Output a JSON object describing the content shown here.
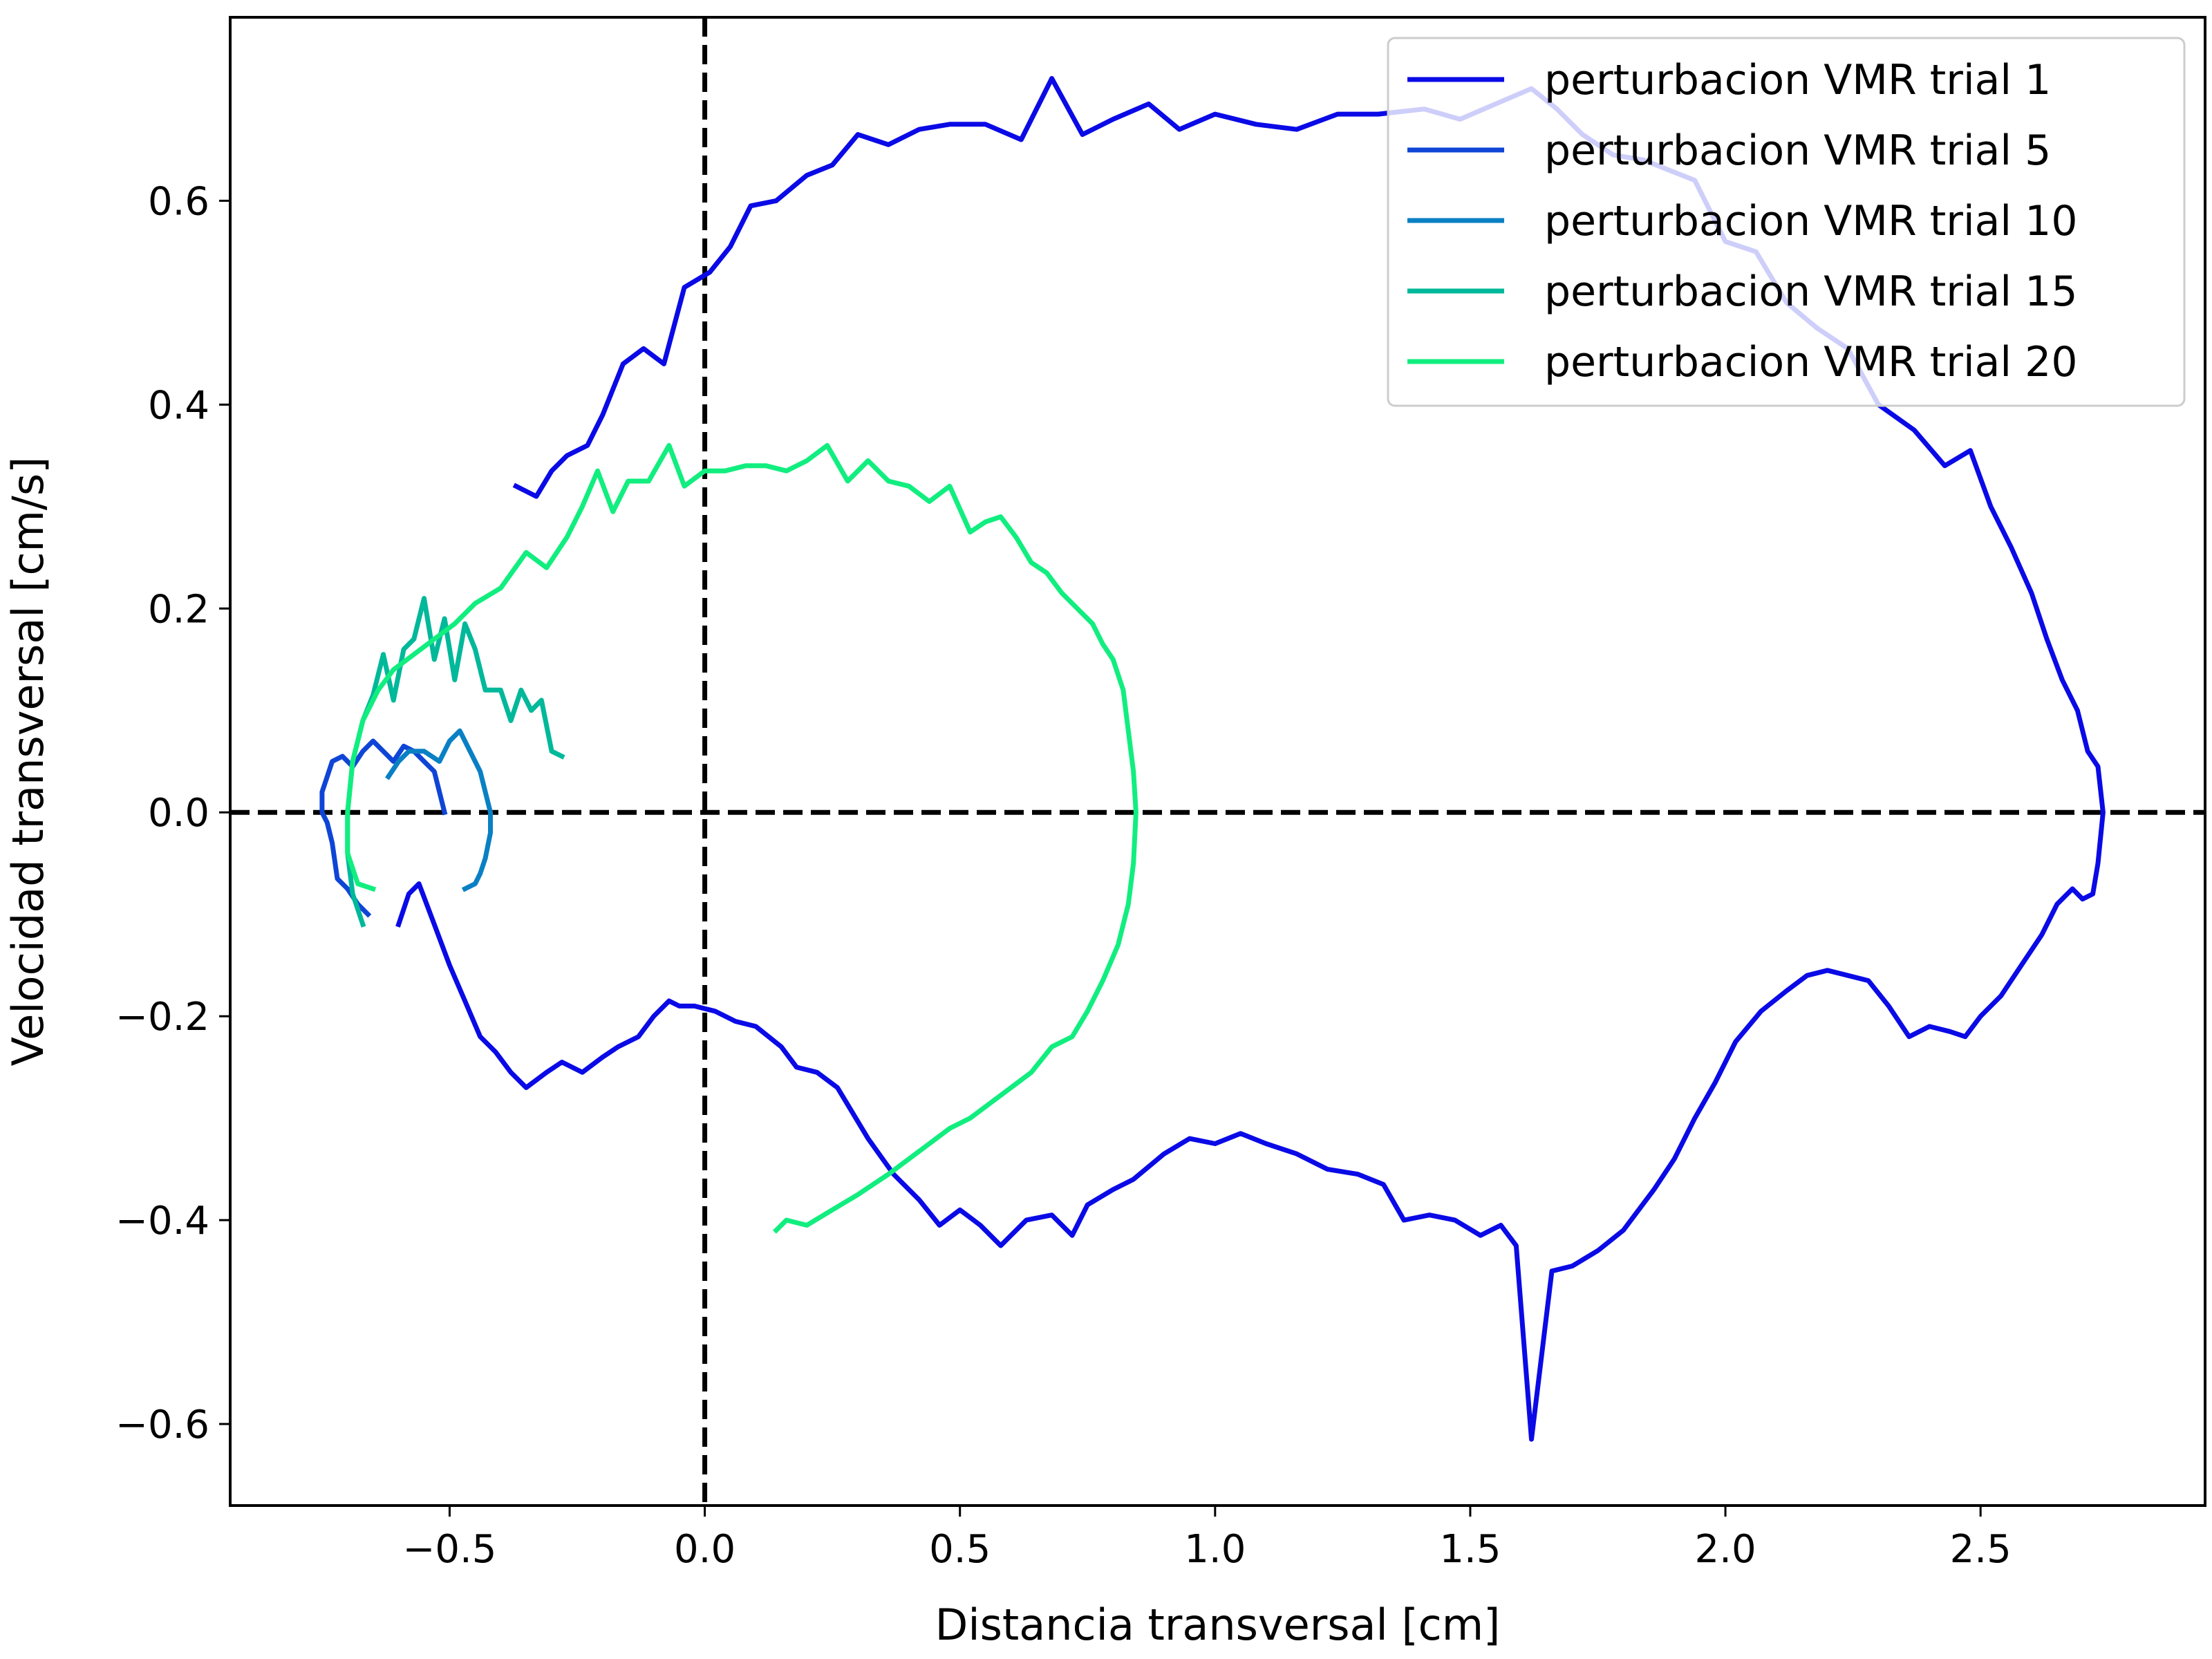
{
  "chart_data": {
    "type": "line",
    "title": "",
    "xlabel": "Distancia transversal [cm]",
    "ylabel": "Velocidad transversal [cm/s]",
    "xlim": [
      -0.93,
      2.94
    ],
    "ylim": [
      -0.68,
      0.78
    ],
    "xticks": [
      -0.5,
      0.0,
      0.5,
      1.0,
      1.5,
      2.0,
      2.5
    ],
    "xtick_labels": [
      "−0.5",
      "0.0",
      "0.5",
      "1.0",
      "1.5",
      "2.0",
      "2.5"
    ],
    "yticks": [
      -0.6,
      -0.4,
      -0.2,
      0.0,
      0.2,
      0.4,
      0.6
    ],
    "ytick_labels": [
      "−0.6",
      "−0.4",
      "−0.2",
      "0.0",
      "0.2",
      "0.4",
      "0.6"
    ],
    "grid": false,
    "legend_position": "top-right",
    "reference_lines": [
      {
        "orientation": "vertical",
        "value": 0.0,
        "style": "dashed",
        "color": "#000000"
      },
      {
        "orientation": "horizontal",
        "value": 0.0,
        "style": "dashed",
        "color": "#000000"
      }
    ],
    "series": [
      {
        "name": "perturbacion VMR trial 1",
        "color": "#0a0ae6",
        "points": [
          [
            -0.37,
            0.32
          ],
          [
            -0.33,
            0.31
          ],
          [
            -0.3,
            0.335
          ],
          [
            -0.27,
            0.35
          ],
          [
            -0.23,
            0.36
          ],
          [
            -0.2,
            0.39
          ],
          [
            -0.16,
            0.44
          ],
          [
            -0.12,
            0.455
          ],
          [
            -0.08,
            0.44
          ],
          [
            -0.04,
            0.515
          ],
          [
            0.01,
            0.53
          ],
          [
            0.05,
            0.555
          ],
          [
            0.09,
            0.595
          ],
          [
            0.14,
            0.6
          ],
          [
            0.2,
            0.625
          ],
          [
            0.25,
            0.635
          ],
          [
            0.3,
            0.665
          ],
          [
            0.36,
            0.655
          ],
          [
            0.42,
            0.67
          ],
          [
            0.48,
            0.675
          ],
          [
            0.55,
            0.675
          ],
          [
            0.62,
            0.66
          ],
          [
            0.68,
            0.72
          ],
          [
            0.74,
            0.665
          ],
          [
            0.8,
            0.68
          ],
          [
            0.87,
            0.695
          ],
          [
            0.93,
            0.67
          ],
          [
            1.0,
            0.685
          ],
          [
            1.08,
            0.675
          ],
          [
            1.16,
            0.67
          ],
          [
            1.24,
            0.685
          ],
          [
            1.32,
            0.685
          ],
          [
            1.41,
            0.69
          ],
          [
            1.48,
            0.68
          ],
          [
            1.55,
            0.695
          ],
          [
            1.62,
            0.71
          ],
          [
            1.67,
            0.69
          ],
          [
            1.72,
            0.665
          ],
          [
            1.78,
            0.645
          ],
          [
            1.84,
            0.64
          ],
          [
            1.89,
            0.63
          ],
          [
            1.94,
            0.62
          ],
          [
            2.0,
            0.56
          ],
          [
            2.06,
            0.55
          ],
          [
            2.12,
            0.5
          ],
          [
            2.18,
            0.475
          ],
          [
            2.24,
            0.455
          ],
          [
            2.3,
            0.4
          ],
          [
            2.37,
            0.375
          ],
          [
            2.43,
            0.34
          ],
          [
            2.48,
            0.355
          ],
          [
            2.52,
            0.3
          ],
          [
            2.56,
            0.26
          ],
          [
            2.6,
            0.215
          ],
          [
            2.63,
            0.17
          ],
          [
            2.66,
            0.13
          ],
          [
            2.69,
            0.1
          ],
          [
            2.71,
            0.06
          ],
          [
            2.73,
            0.045
          ],
          [
            2.74,
            0.0
          ],
          [
            2.73,
            -0.05
          ],
          [
            2.72,
            -0.08
          ],
          [
            2.7,
            -0.085
          ],
          [
            2.68,
            -0.075
          ],
          [
            2.65,
            -0.09
          ],
          [
            2.62,
            -0.12
          ],
          [
            2.58,
            -0.15
          ],
          [
            2.54,
            -0.18
          ],
          [
            2.5,
            -0.2
          ],
          [
            2.47,
            -0.22
          ],
          [
            2.44,
            -0.215
          ],
          [
            2.4,
            -0.21
          ],
          [
            2.36,
            -0.22
          ],
          [
            2.32,
            -0.19
          ],
          [
            2.28,
            -0.165
          ],
          [
            2.24,
            -0.16
          ],
          [
            2.2,
            -0.155
          ],
          [
            2.16,
            -0.16
          ],
          [
            2.12,
            -0.175
          ],
          [
            2.07,
            -0.195
          ],
          [
            2.02,
            -0.225
          ],
          [
            1.98,
            -0.265
          ],
          [
            1.94,
            -0.3
          ],
          [
            1.9,
            -0.34
          ],
          [
            1.86,
            -0.37
          ],
          [
            1.8,
            -0.41
          ],
          [
            1.75,
            -0.43
          ],
          [
            1.7,
            -0.445
          ],
          [
            1.66,
            -0.45
          ],
          [
            1.62,
            -0.615
          ],
          [
            1.59,
            -0.425
          ],
          [
            1.56,
            -0.405
          ],
          [
            1.52,
            -0.415
          ],
          [
            1.47,
            -0.4
          ],
          [
            1.42,
            -0.395
          ],
          [
            1.37,
            -0.4
          ],
          [
            1.33,
            -0.365
          ],
          [
            1.28,
            -0.355
          ],
          [
            1.22,
            -0.35
          ],
          [
            1.16,
            -0.335
          ],
          [
            1.1,
            -0.325
          ],
          [
            1.05,
            -0.315
          ],
          [
            1.0,
            -0.325
          ],
          [
            0.95,
            -0.32
          ],
          [
            0.9,
            -0.335
          ],
          [
            0.84,
            -0.36
          ],
          [
            0.8,
            -0.37
          ],
          [
            0.75,
            -0.385
          ],
          [
            0.72,
            -0.415
          ],
          [
            0.68,
            -0.395
          ],
          [
            0.63,
            -0.4
          ],
          [
            0.58,
            -0.425
          ],
          [
            0.54,
            -0.405
          ],
          [
            0.5,
            -0.39
          ],
          [
            0.46,
            -0.405
          ],
          [
            0.42,
            -0.38
          ],
          [
            0.37,
            -0.355
          ],
          [
            0.32,
            -0.32
          ],
          [
            0.29,
            -0.295
          ],
          [
            0.26,
            -0.27
          ],
          [
            0.22,
            -0.255
          ],
          [
            0.18,
            -0.25
          ],
          [
            0.15,
            -0.23
          ],
          [
            0.1,
            -0.21
          ],
          [
            0.06,
            -0.205
          ],
          [
            0.02,
            -0.195
          ],
          [
            -0.02,
            -0.19
          ],
          [
            -0.05,
            -0.19
          ],
          [
            -0.07,
            -0.185
          ],
          [
            -0.1,
            -0.2
          ],
          [
            -0.13,
            -0.22
          ],
          [
            -0.17,
            -0.23
          ],
          [
            -0.2,
            -0.24
          ],
          [
            -0.24,
            -0.255
          ],
          [
            -0.28,
            -0.245
          ],
          [
            -0.31,
            -0.255
          ],
          [
            -0.35,
            -0.27
          ],
          [
            -0.38,
            -0.255
          ],
          [
            -0.41,
            -0.235
          ],
          [
            -0.44,
            -0.22
          ],
          [
            -0.47,
            -0.185
          ],
          [
            -0.5,
            -0.15
          ],
          [
            -0.53,
            -0.11
          ],
          [
            -0.56,
            -0.07
          ],
          [
            -0.58,
            -0.08
          ],
          [
            -0.6,
            -0.11
          ]
        ]
      },
      {
        "name": "perturbacion VMR trial 5",
        "color": "#0f45d6",
        "points": [
          [
            -0.66,
            -0.1
          ],
          [
            -0.68,
            -0.09
          ],
          [
            -0.7,
            -0.075
          ],
          [
            -0.72,
            -0.065
          ],
          [
            -0.73,
            -0.03
          ],
          [
            -0.74,
            -0.01
          ],
          [
            -0.75,
            0.0
          ],
          [
            -0.75,
            0.02
          ],
          [
            -0.74,
            0.035
          ],
          [
            -0.73,
            0.05
          ],
          [
            -0.71,
            0.055
          ],
          [
            -0.69,
            0.045
          ],
          [
            -0.67,
            0.06
          ],
          [
            -0.65,
            0.07
          ],
          [
            -0.63,
            0.06
          ],
          [
            -0.61,
            0.05
          ],
          [
            -0.59,
            0.065
          ],
          [
            -0.57,
            0.06
          ],
          [
            -0.55,
            0.05
          ],
          [
            -0.53,
            0.04
          ],
          [
            -0.52,
            0.02
          ],
          [
            -0.51,
            0.0
          ]
        ]
      },
      {
        "name": "perturbacion VMR trial 10",
        "color": "#0a80c4",
        "points": [
          [
            -0.62,
            0.035
          ],
          [
            -0.6,
            0.05
          ],
          [
            -0.58,
            0.06
          ],
          [
            -0.55,
            0.06
          ],
          [
            -0.52,
            0.05
          ],
          [
            -0.5,
            0.07
          ],
          [
            -0.48,
            0.08
          ],
          [
            -0.46,
            0.06
          ],
          [
            -0.44,
            0.04
          ],
          [
            -0.43,
            0.02
          ],
          [
            -0.42,
            0.0
          ],
          [
            -0.42,
            -0.02
          ],
          [
            -0.43,
            -0.045
          ],
          [
            -0.44,
            -0.06
          ],
          [
            -0.45,
            -0.07
          ],
          [
            -0.47,
            -0.075
          ]
        ]
      },
      {
        "name": "perturbacion VMR trial 15",
        "color": "#00b89a",
        "points": [
          [
            -0.67,
            -0.11
          ],
          [
            -0.69,
            -0.08
          ],
          [
            -0.7,
            -0.04
          ],
          [
            -0.7,
            0.0
          ],
          [
            -0.69,
            0.05
          ],
          [
            -0.67,
            0.09
          ],
          [
            -0.65,
            0.115
          ],
          [
            -0.63,
            0.155
          ],
          [
            -0.61,
            0.11
          ],
          [
            -0.59,
            0.16
          ],
          [
            -0.57,
            0.17
          ],
          [
            -0.55,
            0.21
          ],
          [
            -0.53,
            0.15
          ],
          [
            -0.51,
            0.19
          ],
          [
            -0.49,
            0.13
          ],
          [
            -0.47,
            0.185
          ],
          [
            -0.45,
            0.16
          ],
          [
            -0.43,
            0.12
          ],
          [
            -0.4,
            0.12
          ],
          [
            -0.38,
            0.09
          ],
          [
            -0.36,
            0.12
          ],
          [
            -0.34,
            0.1
          ],
          [
            -0.32,
            0.11
          ],
          [
            -0.3,
            0.06
          ],
          [
            -0.28,
            0.055
          ]
        ]
      },
      {
        "name": "perturbacion VMR trial 20",
        "color": "#11ee7f",
        "points": [
          [
            -0.65,
            -0.075
          ],
          [
            -0.68,
            -0.07
          ],
          [
            -0.7,
            -0.04
          ],
          [
            -0.7,
            0.0
          ],
          [
            -0.69,
            0.05
          ],
          [
            -0.67,
            0.09
          ],
          [
            -0.64,
            0.12
          ],
          [
            -0.61,
            0.14
          ],
          [
            -0.57,
            0.155
          ],
          [
            -0.53,
            0.17
          ],
          [
            -0.49,
            0.185
          ],
          [
            -0.45,
            0.205
          ],
          [
            -0.4,
            0.22
          ],
          [
            -0.35,
            0.255
          ],
          [
            -0.31,
            0.24
          ],
          [
            -0.27,
            0.27
          ],
          [
            -0.24,
            0.3
          ],
          [
            -0.21,
            0.335
          ],
          [
            -0.18,
            0.295
          ],
          [
            -0.15,
            0.325
          ],
          [
            -0.11,
            0.325
          ],
          [
            -0.07,
            0.36
          ],
          [
            -0.04,
            0.32
          ],
          [
            0.0,
            0.335
          ],
          [
            0.04,
            0.335
          ],
          [
            0.08,
            0.34
          ],
          [
            0.12,
            0.34
          ],
          [
            0.16,
            0.335
          ],
          [
            0.2,
            0.345
          ],
          [
            0.24,
            0.36
          ],
          [
            0.28,
            0.325
          ],
          [
            0.32,
            0.345
          ],
          [
            0.36,
            0.325
          ],
          [
            0.4,
            0.32
          ],
          [
            0.44,
            0.305
          ],
          [
            0.48,
            0.32
          ],
          [
            0.52,
            0.275
          ],
          [
            0.55,
            0.285
          ],
          [
            0.58,
            0.29
          ],
          [
            0.61,
            0.27
          ],
          [
            0.64,
            0.245
          ],
          [
            0.67,
            0.235
          ],
          [
            0.7,
            0.215
          ],
          [
            0.73,
            0.2
          ],
          [
            0.76,
            0.185
          ],
          [
            0.78,
            0.165
          ],
          [
            0.8,
            0.15
          ],
          [
            0.82,
            0.12
          ],
          [
            0.83,
            0.08
          ],
          [
            0.84,
            0.04
          ],
          [
            0.845,
            0.0
          ],
          [
            0.84,
            -0.05
          ],
          [
            0.83,
            -0.09
          ],
          [
            0.81,
            -0.13
          ],
          [
            0.78,
            -0.165
          ],
          [
            0.75,
            -0.195
          ],
          [
            0.72,
            -0.22
          ],
          [
            0.68,
            -0.23
          ],
          [
            0.64,
            -0.255
          ],
          [
            0.6,
            -0.27
          ],
          [
            0.56,
            -0.285
          ],
          [
            0.52,
            -0.3
          ],
          [
            0.48,
            -0.31
          ],
          [
            0.44,
            -0.325
          ],
          [
            0.4,
            -0.34
          ],
          [
            0.36,
            -0.355
          ],
          [
            0.3,
            -0.375
          ],
          [
            0.25,
            -0.39
          ],
          [
            0.2,
            -0.405
          ],
          [
            0.16,
            -0.4
          ],
          [
            0.14,
            -0.41
          ]
        ]
      }
    ]
  }
}
